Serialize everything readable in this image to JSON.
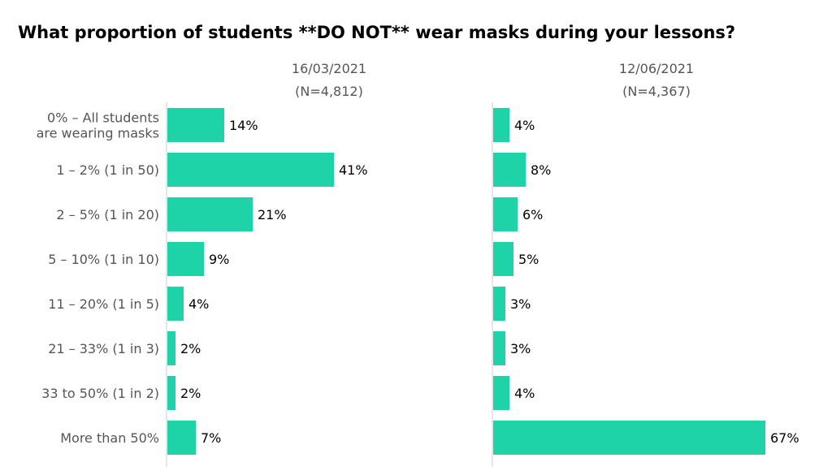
{
  "title": "What proportion of students **DO NOT** wear masks during your lessons?",
  "chart_data": {
    "type": "bar",
    "orientation": "horizontal",
    "title": "What proportion of students **DO NOT** wear masks during your lessons?",
    "categories": [
      [
        "0% – All students",
        "are wearing masks"
      ],
      [
        "1 – 2% (1 in 50)"
      ],
      [
        "2 – 5% (1 in 20)"
      ],
      [
        "5 – 10% (1 in 10)"
      ],
      [
        "11 – 20% (1 in 5)"
      ],
      [
        "21 – 33% (1 in 3)"
      ],
      [
        "33 to 50% (1 in 2)"
      ],
      [
        "More than 50%"
      ]
    ],
    "panels": [
      {
        "date": "16/03/2021",
        "n_label": "(N=4,812)",
        "values": [
          14,
          41,
          21,
          9,
          4,
          2,
          2,
          7
        ],
        "labels": [
          "14%",
          "41%",
          "21%",
          "9%",
          "4%",
          "2%",
          "2%",
          "7%"
        ]
      },
      {
        "date": "12/06/2021",
        "n_label": "(N=4,367)",
        "values": [
          4,
          8,
          6,
          5,
          3,
          3,
          4,
          67
        ],
        "labels": [
          "4%",
          "8%",
          "6%",
          "5%",
          "3%",
          "3%",
          "4%",
          "67%"
        ]
      }
    ],
    "bar_color": "#1ed3a8",
    "axis_color": "#cccccc",
    "grid": false,
    "legend": "none"
  }
}
